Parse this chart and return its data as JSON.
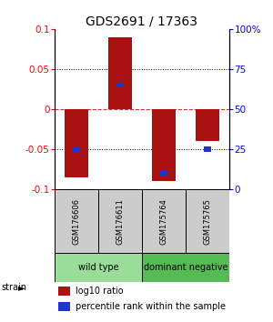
{
  "title": "GDS2691 / 17363",
  "samples": [
    "GSM176606",
    "GSM176611",
    "GSM175764",
    "GSM175765"
  ],
  "log10_ratio": [
    -0.085,
    0.09,
    -0.09,
    -0.04
  ],
  "percentile_rank": [
    25,
    65,
    10,
    25
  ],
  "groups": [
    {
      "name": "wild type",
      "indices": [
        0,
        1
      ],
      "color": "#99dd99"
    },
    {
      "name": "dominant negative",
      "indices": [
        2,
        3
      ],
      "color": "#55bb55"
    }
  ],
  "ylim_left": [
    -0.1,
    0.1
  ],
  "ylim_right": [
    0,
    100
  ],
  "yticks_left": [
    -0.1,
    -0.05,
    0,
    0.05,
    0.1
  ],
  "ytick_labels_left": [
    "-0.1",
    "-0.05",
    "0",
    "0.05",
    "0.1"
  ],
  "yticks_right": [
    0,
    25,
    50,
    75,
    100
  ],
  "ytick_labels_right": [
    "0",
    "25",
    "50",
    "75",
    "100%"
  ],
  "bar_color": "#aa1111",
  "percentile_color": "#2233cc",
  "grid_dotted_color": "black",
  "zero_line_color": "#cc3333",
  "background_color": "white",
  "sample_box_color": "#cccccc",
  "title_fontsize": 10,
  "tick_fontsize": 7.5,
  "legend_fontsize": 7,
  "sample_fontsize": 6,
  "group_fontsize": 7
}
